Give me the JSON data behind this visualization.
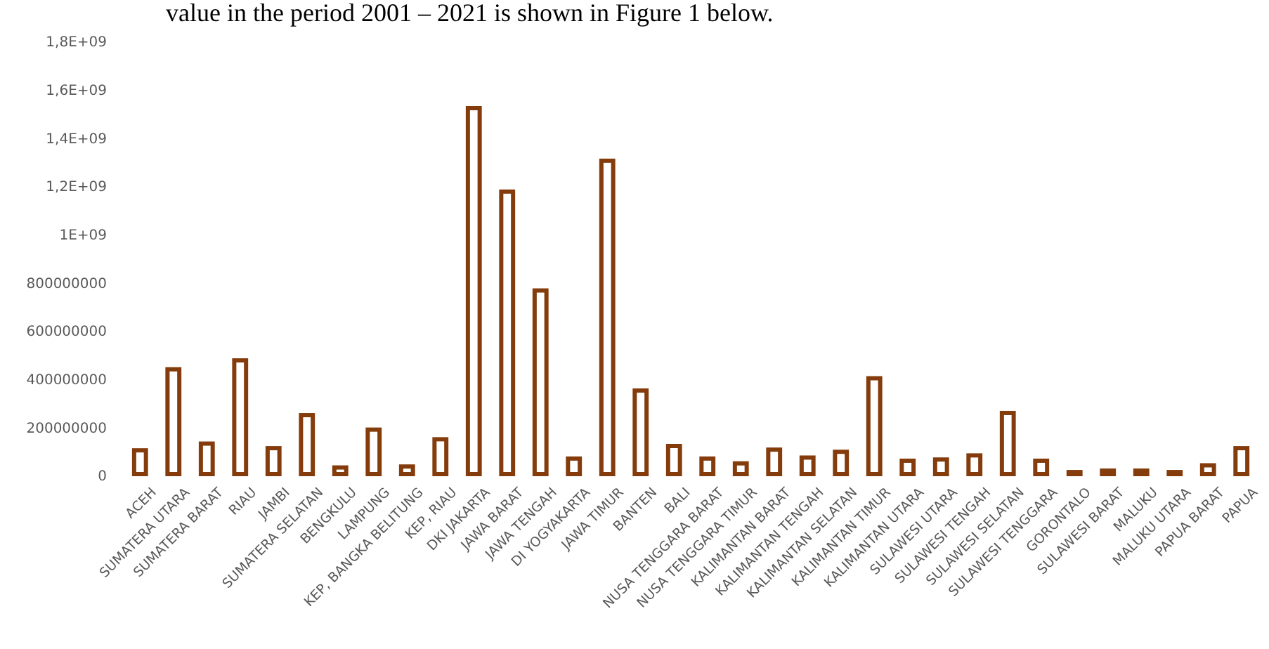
{
  "chart_data": {
    "type": "bar",
    "annotations": [
      "value in the period 2001 – 2021 is shown in Figure 1 below."
    ],
    "categories": [
      "ACEH",
      "SUMATERA UTARA",
      "SUMATERA BARAT",
      "RIAU",
      "JAMBI",
      "SUMATERA SELATAN",
      "BENGKULU",
      "LAMPUNG",
      "KEP, BANGKA BELITUNG",
      "KEP, RIAU",
      "DKI JAKARTA",
      "JAWA BARAT",
      "JAWA TENGAH",
      "DI YOGYAKARTA",
      "JAWA TIMUR",
      "BANTEN",
      "BALI",
      "NUSA TENGGARA BARAT",
      "NUSA TENGGARA TIMUR",
      "KALIMANTAN BARAT",
      "KALIMANTAN TENGAH",
      "KALIMANTAN SELATAN",
      "KALIMANTAN TIMUR",
      "KALIMANTAN UTARA",
      "SULAWESI UTARA",
      "SULAWESI TENGAH",
      "SULAWESI SELATAN",
      "SULAWESI TENGGARA",
      "GORONTALO",
      "SULAWESI BARAT",
      "MALUKU",
      "MALUKU UTARA",
      "PAPUA BARAT",
      "PAPUA"
    ],
    "values": [
      116000000,
      452000000,
      144000000,
      489000000,
      125000000,
      262000000,
      45000000,
      202000000,
      49000000,
      162000000,
      1535000000,
      1189000000,
      779000000,
      82000000,
      1317000000,
      364000000,
      134000000,
      82000000,
      62000000,
      119000000,
      86000000,
      110000000,
      415000000,
      73000000,
      78000000,
      95000000,
      271000000,
      73000000,
      26000000,
      32000000,
      32000000,
      26000000,
      54000000,
      125000000
    ],
    "color": "#843c0c",
    "ylim": [
      0,
      1800000000
    ],
    "yticks": [
      0,
      {
        "value": 200000000,
        "label": "200000000"
      },
      {
        "value": 400000000,
        "label": "400000000"
      },
      {
        "value": 600000000,
        "label": "600000000"
      },
      {
        "value": 800000000,
        "label": "800000000"
      },
      {
        "value": 1000000000,
        "label": "1E+09"
      },
      {
        "value": 1200000000,
        "label": "1,2E+09"
      },
      {
        "value": 1400000000,
        "label": "1,4E+09"
      },
      {
        "value": 1600000000,
        "label": "1,6E+09"
      },
      {
        "value": 1800000000,
        "label": "1,8E+09"
      }
    ],
    "grid": false
  }
}
